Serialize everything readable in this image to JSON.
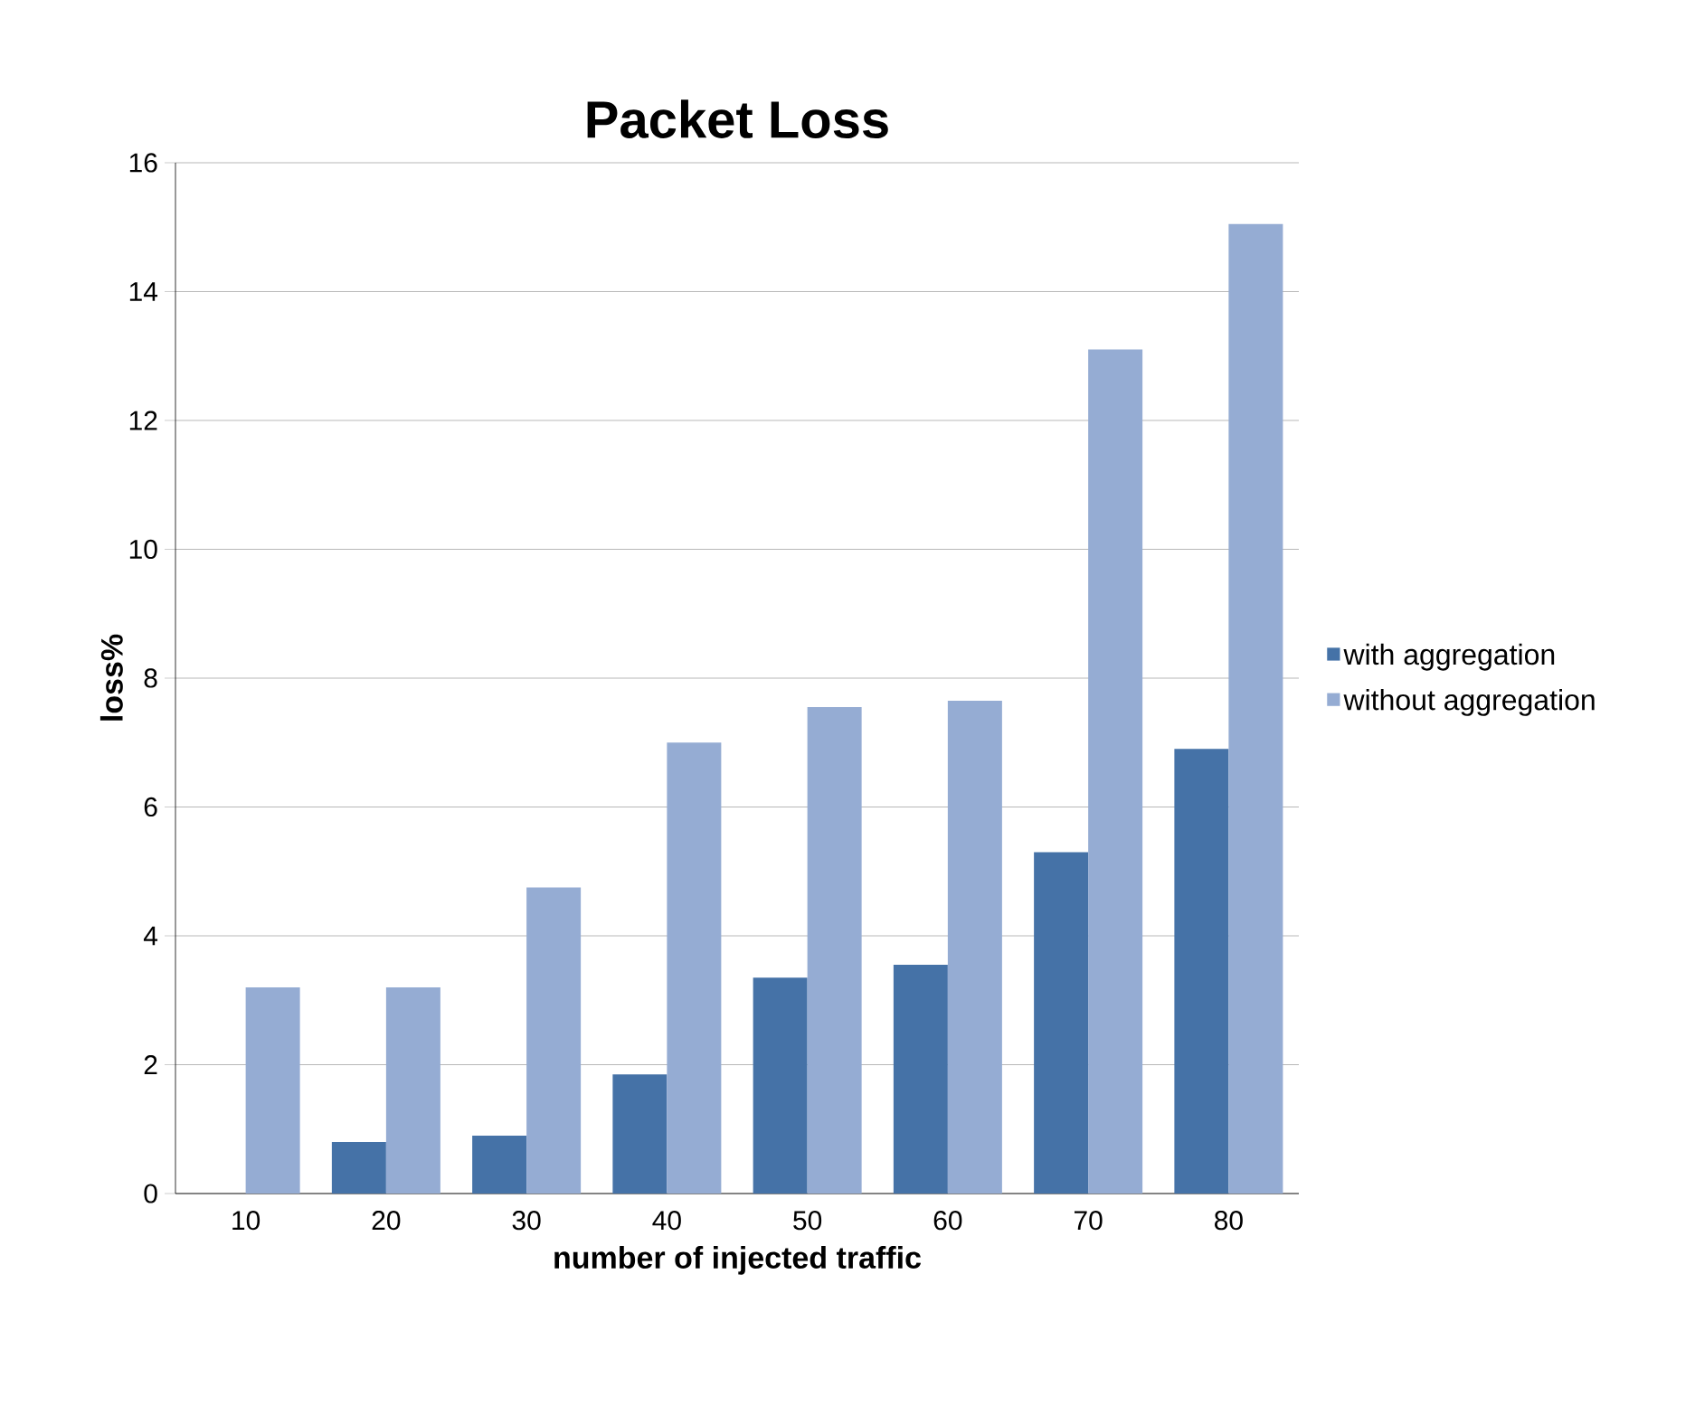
{
  "chart_data": {
    "type": "bar",
    "title": "Packet Loss",
    "xlabel": "number of injected traffic",
    "ylabel": "loss%",
    "categories": [
      "10",
      "20",
      "30",
      "40",
      "50",
      "60",
      "70",
      "80"
    ],
    "series": [
      {
        "name": "with aggregation",
        "color": "#4572a7",
        "values": [
          0,
          0.8,
          0.9,
          1.85,
          3.35,
          3.55,
          5.3,
          6.9
        ]
      },
      {
        "name": "without aggregation",
        "color": "#95acd3",
        "values": [
          3.2,
          3.2,
          4.75,
          7.0,
          7.55,
          7.65,
          13.1,
          15.05
        ]
      }
    ],
    "ylim": [
      0,
      16
    ],
    "yticks": [
      0,
      2,
      4,
      6,
      8,
      10,
      12,
      14,
      16
    ],
    "grid": "y",
    "legend": "right"
  }
}
